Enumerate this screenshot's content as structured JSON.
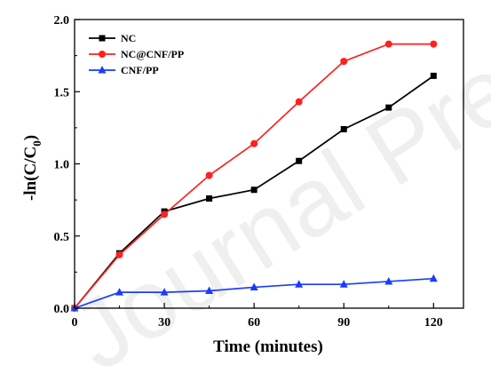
{
  "watermark": {
    "text": "Journal Pre-proof"
  },
  "chart_data": {
    "type": "line",
    "title": "",
    "xlabel": "Time (minutes)",
    "ylabel": "-ln(C/C0)",
    "ylabel_parts": {
      "prefix": "-ln(C/C",
      "subscript": "0",
      "suffix": ")"
    },
    "xlim": [
      0,
      130
    ],
    "ylim": [
      0,
      2.0
    ],
    "x_ticks": [
      0,
      30,
      60,
      90,
      120
    ],
    "x_tick_labels": [
      "0",
      "30",
      "60",
      "90",
      "120"
    ],
    "y_ticks": [
      0,
      0.5,
      1.0,
      1.5,
      2.0
    ],
    "y_tick_labels": [
      "0.0",
      "0.5",
      "1.0",
      "1.5",
      "2.0"
    ],
    "grid": false,
    "legend_position": "top-left",
    "series": [
      {
        "name": "NC",
        "color": "#000000",
        "marker": "square",
        "x": [
          0,
          15,
          30,
          45,
          60,
          75,
          90,
          105,
          120
        ],
        "y": [
          0,
          0.38,
          0.67,
          0.76,
          0.82,
          1.02,
          1.24,
          1.39,
          1.61
        ]
      },
      {
        "name": "NC@CNF/PP",
        "color": "#ff2020",
        "marker": "circle",
        "x": [
          0,
          15,
          30,
          45,
          60,
          75,
          90,
          105,
          120
        ],
        "y": [
          0,
          0.37,
          0.65,
          0.92,
          1.14,
          1.43,
          1.71,
          1.83,
          1.83
        ]
      },
      {
        "name": "CNF/PP",
        "color": "#1a3cff",
        "marker": "triangle",
        "x": [
          0,
          15,
          30,
          45,
          60,
          75,
          90,
          105,
          120
        ],
        "y": [
          0,
          0.11,
          0.11,
          0.12,
          0.145,
          0.165,
          0.165,
          0.185,
          0.205
        ]
      }
    ]
  }
}
